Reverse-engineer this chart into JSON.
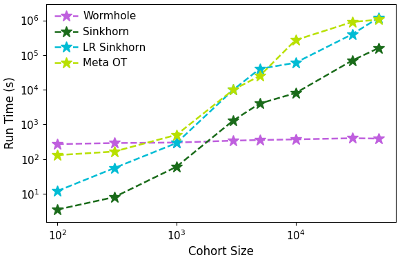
{
  "title": "",
  "xlabel": "Cohort Size",
  "ylabel": "Run Time (s)",
  "series": [
    {
      "label": "Wormhole",
      "color": "#bf5fde",
      "linestyle": "--",
      "x": [
        100,
        300,
        1000,
        3000,
        5000,
        10000,
        30000,
        50000
      ],
      "y": [
        270,
        290,
        300,
        340,
        355,
        370,
        400,
        390
      ]
    },
    {
      "label": "Sinkhorn",
      "color": "#1a6b1a",
      "linestyle": "--",
      "x": [
        100,
        300,
        1000,
        3000,
        5000,
        10000,
        30000,
        50000
      ],
      "y": [
        3.5,
        8,
        60,
        1300,
        4000,
        8000,
        70000,
        160000
      ]
    },
    {
      "label": "LR Sinkhorn",
      "color": "#00bcd4",
      "linestyle": "--",
      "x": [
        100,
        300,
        1000,
        3000,
        5000,
        10000,
        30000,
        50000
      ],
      "y": [
        12,
        55,
        290,
        10000,
        40000,
        60000,
        400000,
        1200000
      ]
    },
    {
      "label": "Meta OT",
      "color": "#b8e000",
      "linestyle": "--",
      "x": [
        100,
        300,
        1000,
        3000,
        5000,
        10000,
        30000,
        50000
      ],
      "y": [
        130,
        165,
        500,
        10000,
        25000,
        270000,
        900000,
        1050000
      ]
    }
  ],
  "xlim": [
    80,
    70000
  ],
  "ylim": [
    1.5,
    3000000
  ],
  "xticks": [
    100,
    1000,
    10000
  ],
  "yticks": [
    10,
    100,
    1000,
    10000,
    100000,
    1000000
  ],
  "legend_loc": "upper left",
  "markersize": 12,
  "linewidth": 1.8,
  "fontsize_label": 12,
  "fontsize_tick": 11,
  "fontsize_legend": 11
}
